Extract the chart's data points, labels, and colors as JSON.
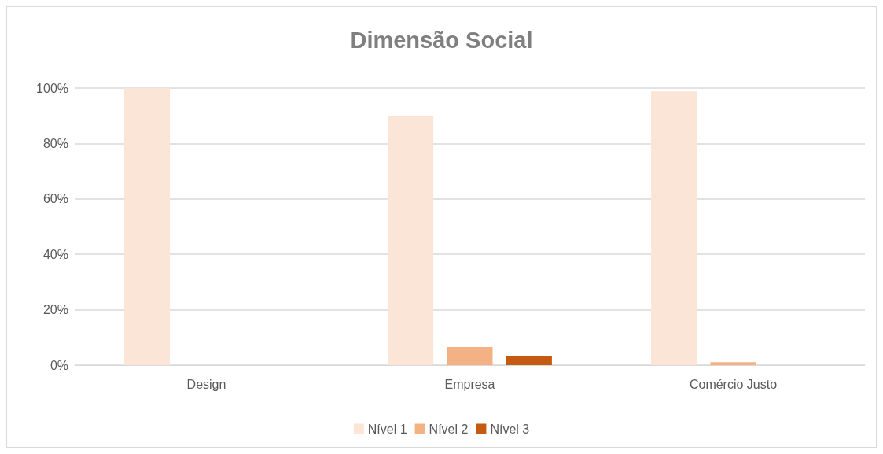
{
  "chart_data": {
    "type": "bar",
    "title": "Dimensão Social",
    "categories": [
      "Design",
      "Empresa",
      "Comércio Justo"
    ],
    "series": [
      {
        "name": "Nível 1",
        "color": "#fbe5d6",
        "values": [
          100,
          90,
          98.8
        ]
      },
      {
        "name": "Nível 2",
        "color": "#f4b183",
        "values": [
          0,
          6.5,
          1.1
        ]
      },
      {
        "name": "Nível 3",
        "color": "#c55a11",
        "values": [
          0,
          3.3,
          0
        ]
      }
    ],
    "ylim": [
      0,
      100
    ],
    "yticks": [
      {
        "value": 0,
        "label": "0%"
      },
      {
        "value": 20,
        "label": "20%"
      },
      {
        "value": 40,
        "label": "40%"
      },
      {
        "value": 60,
        "label": "60%"
      },
      {
        "value": 80,
        "label": "80%"
      },
      {
        "value": 100,
        "label": "100%"
      }
    ],
    "grid": "y",
    "legend": "bottom"
  }
}
